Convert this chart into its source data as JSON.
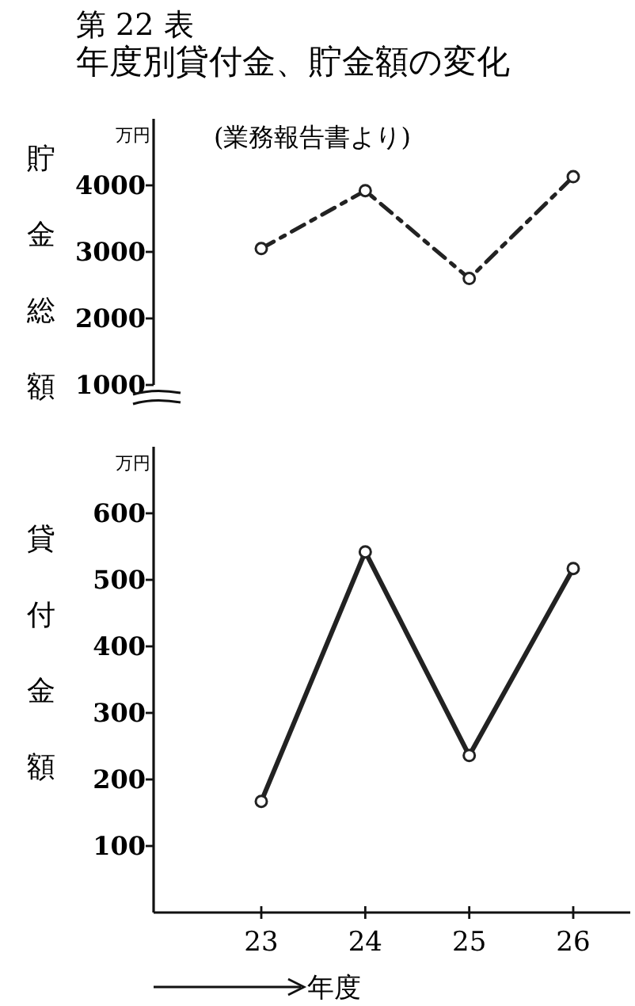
{
  "chart_data": [
    {
      "type": "line",
      "title": "第 22 表",
      "subtitle": "年度別貸付金、貯金額の変化",
      "ylabel": "貯金総額",
      "annotations": [
        "(業務報告書より)",
        "万円"
      ],
      "categories": [
        "23",
        "24",
        "25",
        "26"
      ],
      "tick_labels": "y",
      "ylim": [
        1000,
        5000
      ],
      "yticks": [
        1000,
        2000,
        3000,
        4000
      ],
      "marker": "circle",
      "line_style": "dashed",
      "series": [
        {
          "color": "#222222",
          "values": [
            3050,
            3920,
            2600,
            4130
          ]
        }
      ]
    },
    {
      "type": "line",
      "ylabel": "貸付金額",
      "xlabel": "年度",
      "annotations": [
        "万円"
      ],
      "categories": [
        "23",
        "24",
        "25",
        "26"
      ],
      "ylim": [
        0,
        700
      ],
      "yticks": [
        100,
        200,
        300,
        400,
        500,
        600
      ],
      "marker": "circle",
      "line_style": "solid",
      "series": [
        {
          "color": "#222222",
          "values": [
            167,
            542,
            236,
            517
          ]
        }
      ]
    }
  ]
}
